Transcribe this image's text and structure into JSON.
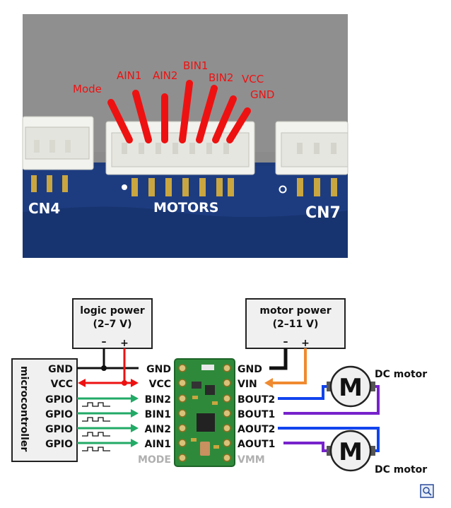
{
  "photo": {
    "connector_labels": [
      "Mode",
      "AIN1",
      "AIN2",
      "BIN1",
      "BIN2",
      "VCC",
      "GND"
    ],
    "board_labels": {
      "left": "CN4",
      "center": "MOTORS",
      "right": "CN7"
    }
  },
  "diagram": {
    "logic_power": {
      "title": "logic power",
      "range": "(2–7 V)",
      "minus": "–",
      "plus": "+"
    },
    "motor_power": {
      "title": "motor power",
      "range": "(2–11 V)",
      "minus": "–",
      "plus": "+"
    },
    "microcontroller": {
      "label": "microcontroller",
      "pins": [
        "GND",
        "VCC",
        "GPIO",
        "GPIO",
        "GPIO",
        "GPIO"
      ]
    },
    "driver_left_pins": [
      "GND",
      "VCC",
      "BIN2",
      "BIN1",
      "AIN2",
      "AIN1",
      "MODE"
    ],
    "driver_right_pins": [
      "GND",
      "VIN",
      "BOUT2",
      "BOUT1",
      "AOUT2",
      "AOUT1",
      "VMM"
    ],
    "motors": [
      {
        "symbol": "M",
        "label": "DC motor"
      },
      {
        "symbol": "M",
        "label": "DC motor"
      }
    ]
  },
  "colors": {
    "red": "#ee1111",
    "green": "#22aa66",
    "blue": "#1144ee",
    "purple": "#7722cc",
    "orange": "#f08a30",
    "board_blue": "#1c3a7a",
    "pcb_green": "#2e8a3a"
  },
  "icons": {
    "corner": "zoom-icon"
  }
}
